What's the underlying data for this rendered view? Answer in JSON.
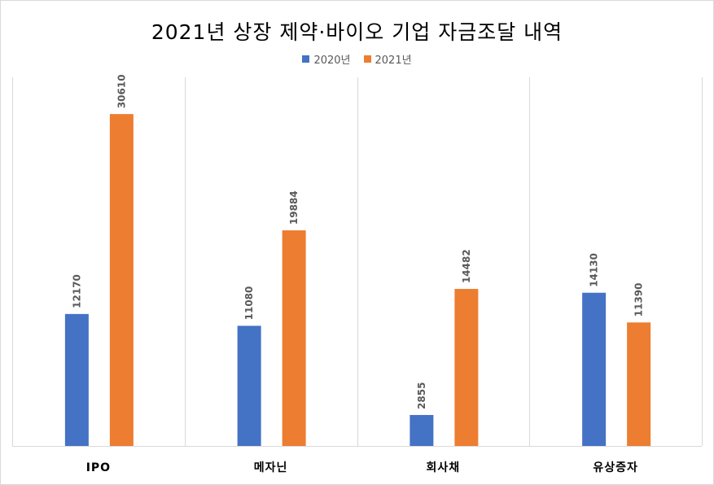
{
  "chart_data": {
    "type": "bar",
    "title": "2021년 상장 제약·바이오 기업 자금조달 내역",
    "categories": [
      "IPO",
      "메자닌",
      "회사채",
      "유상증자"
    ],
    "series": [
      {
        "name": "2020년",
        "color": "#4472C4",
        "values": [
          12170,
          11080,
          2855,
          14130
        ]
      },
      {
        "name": "2021년",
        "color": "#ED7D31",
        "values": [
          30610,
          19884,
          14482,
          11390
        ]
      }
    ],
    "xlabel": "",
    "ylabel": "",
    "ylim": [
      0,
      34000
    ],
    "grid": false,
    "category_separators": true,
    "legend": "top-center",
    "data_labels": "rotated-vertical"
  }
}
